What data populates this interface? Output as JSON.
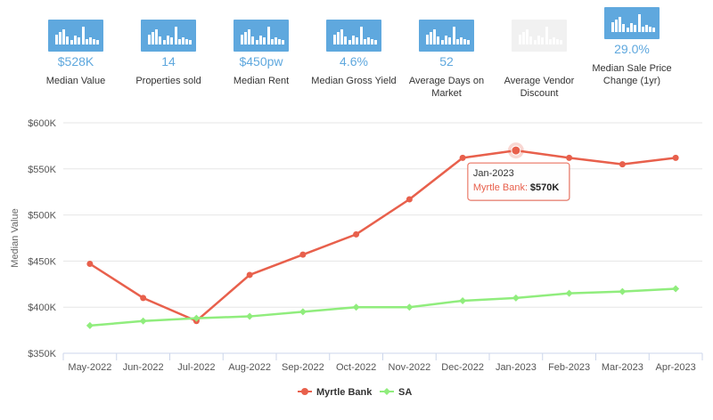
{
  "stats": [
    {
      "value": "$528K",
      "label": "Median Value"
    },
    {
      "value": "14",
      "label": "Properties sold"
    },
    {
      "value": "$450pw",
      "label": "Median Rent"
    },
    {
      "value": "4.6%",
      "label": "Median Gross Yield"
    },
    {
      "value": "52",
      "label": "Average Days on Market"
    },
    {
      "value": "",
      "label": "Average Vendor Discount"
    },
    {
      "value": "29.0%",
      "label": "Median Sale Price Change (1yr)"
    }
  ],
  "colors": {
    "accent": "#5fa8de",
    "muted_icon": "#f1f1f1",
    "myrtle_bank": "#e8604c",
    "sa": "#90ed7d"
  },
  "chart_data": {
    "type": "line",
    "ylabel": "Median Value",
    "ylim": [
      350000,
      600000
    ],
    "yticks": [
      350000,
      400000,
      450000,
      500000,
      550000,
      600000
    ],
    "ytick_labels": [
      "$350K",
      "$400K",
      "$450K",
      "$500K",
      "$550K",
      "$600K"
    ],
    "categories": [
      "May-2022",
      "Jun-2022",
      "Jul-2022",
      "Aug-2022",
      "Sep-2022",
      "Oct-2022",
      "Nov-2022",
      "Dec-2022",
      "Jan-2023",
      "Feb-2023",
      "Mar-2023",
      "Apr-2023"
    ],
    "series": [
      {
        "name": "Myrtle Bank",
        "values": [
          447000,
          410000,
          385000,
          435000,
          457000,
          479000,
          517000,
          562000,
          570000,
          562000,
          555000,
          562000
        ]
      },
      {
        "name": "SA",
        "values": [
          380000,
          385000,
          388000,
          390000,
          395000,
          400000,
          400000,
          407000,
          410000,
          415000,
          417000,
          420000
        ]
      }
    ],
    "grid": true,
    "legend": "bottom-center",
    "tooltip": {
      "title": "Jan-2023",
      "series": "Myrtle Bank",
      "value": "$570K",
      "index": 8
    }
  }
}
